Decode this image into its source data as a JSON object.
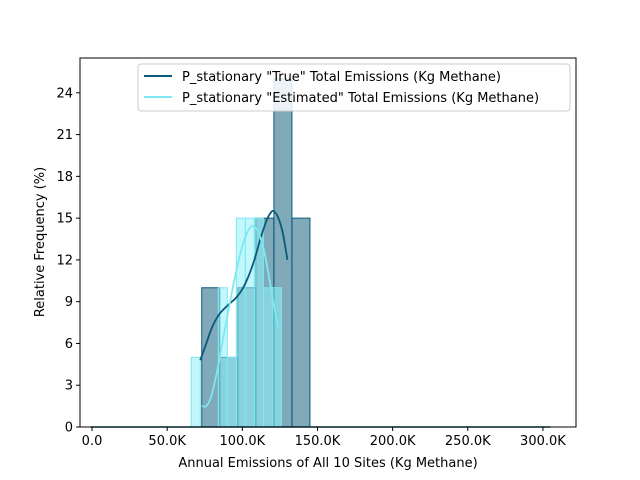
{
  "chart_data": {
    "type": "histogram",
    "xlabel": "Annual Emissions of All 10 Sites (Kg Methane)",
    "ylabel": "Relative Frequency (%)",
    "xlim": [
      -8000,
      322000
    ],
    "ylim": [
      0,
      26.5
    ],
    "x_ticks": [
      {
        "value": 0,
        "label": "0.0"
      },
      {
        "value": 50000,
        "label": "50.0K"
      },
      {
        "value": 100000,
        "label": "100.0K"
      },
      {
        "value": 150000,
        "label": "150.0K"
      },
      {
        "value": 200000,
        "label": "200.0K"
      },
      {
        "value": 250000,
        "label": "250.0K"
      },
      {
        "value": 300000,
        "label": "300.0K"
      }
    ],
    "y_ticks": [
      {
        "value": 0,
        "label": "0"
      },
      {
        "value": 3,
        "label": "3"
      },
      {
        "value": 6,
        "label": "6"
      },
      {
        "value": 9,
        "label": "9"
      },
      {
        "value": 12,
        "label": "12"
      },
      {
        "value": 15,
        "label": "15"
      },
      {
        "value": 18,
        "label": "18"
      },
      {
        "value": 21,
        "label": "21"
      },
      {
        "value": 24,
        "label": "24"
      }
    ],
    "grid": false,
    "legend_position": "top-right",
    "series": [
      {
        "name": "P_stationary \"True\" Total Emissions (Kg Methane)",
        "color": "#0b5a78",
        "fill": "#0b5a78",
        "bin_width": 12000,
        "bins": [
          {
            "x0": 73000,
            "height": 10
          },
          {
            "x0": 85000,
            "height": 5
          },
          {
            "x0": 97000,
            "height": 10
          },
          {
            "x0": 109000,
            "height": 15
          },
          {
            "x0": 121000,
            "height": 25
          },
          {
            "x0": 133000,
            "height": 15
          }
        ],
        "kde": [
          [
            72000,
            4.8
          ],
          [
            76000,
            6.0
          ],
          [
            80000,
            7.2
          ],
          [
            84000,
            8.0
          ],
          [
            88000,
            8.5
          ],
          [
            92000,
            8.9
          ],
          [
            96000,
            9.3
          ],
          [
            100000,
            9.9
          ],
          [
            104000,
            10.8
          ],
          [
            108000,
            12.0
          ],
          [
            112000,
            13.5
          ],
          [
            116000,
            14.8
          ],
          [
            119000,
            15.4
          ],
          [
            121000,
            15.5
          ],
          [
            124000,
            15.0
          ],
          [
            127000,
            13.9
          ],
          [
            130000,
            12.0
          ]
        ],
        "zero_line": [
          -1000,
          305000
        ]
      },
      {
        "name": "P_stationary \"Estimated\" Total Emissions (Kg Methane)",
        "color": "#7ee8f2",
        "fill": "#8ff2fa",
        "bin_width": 6000,
        "bins": [
          {
            "x0": 66000,
            "height": 5
          },
          {
            "x0": 72000,
            "height": 0
          },
          {
            "x0": 78000,
            "height": 0
          },
          {
            "x0": 84000,
            "height": 10
          },
          {
            "x0": 90000,
            "height": 5
          },
          {
            "x0": 96000,
            "height": 15
          },
          {
            "x0": 102000,
            "height": 15
          },
          {
            "x0": 108000,
            "height": 15
          },
          {
            "x0": 114000,
            "height": 10
          },
          {
            "x0": 120000,
            "height": 10
          }
        ],
        "kde": [
          [
            73000,
            1.5
          ],
          [
            76000,
            1.5
          ],
          [
            79000,
            2.1
          ],
          [
            82000,
            3.4
          ],
          [
            85000,
            5.0
          ],
          [
            88000,
            6.8
          ],
          [
            91000,
            8.5
          ],
          [
            94000,
            10.2
          ],
          [
            97000,
            11.7
          ],
          [
            100000,
            13.0
          ],
          [
            103000,
            13.9
          ],
          [
            106000,
            14.4
          ],
          [
            109000,
            14.3
          ],
          [
            112000,
            13.6
          ],
          [
            115000,
            12.4
          ],
          [
            118000,
            10.6
          ],
          [
            121000,
            8.7
          ],
          [
            124000,
            7.1
          ]
        ]
      }
    ]
  }
}
